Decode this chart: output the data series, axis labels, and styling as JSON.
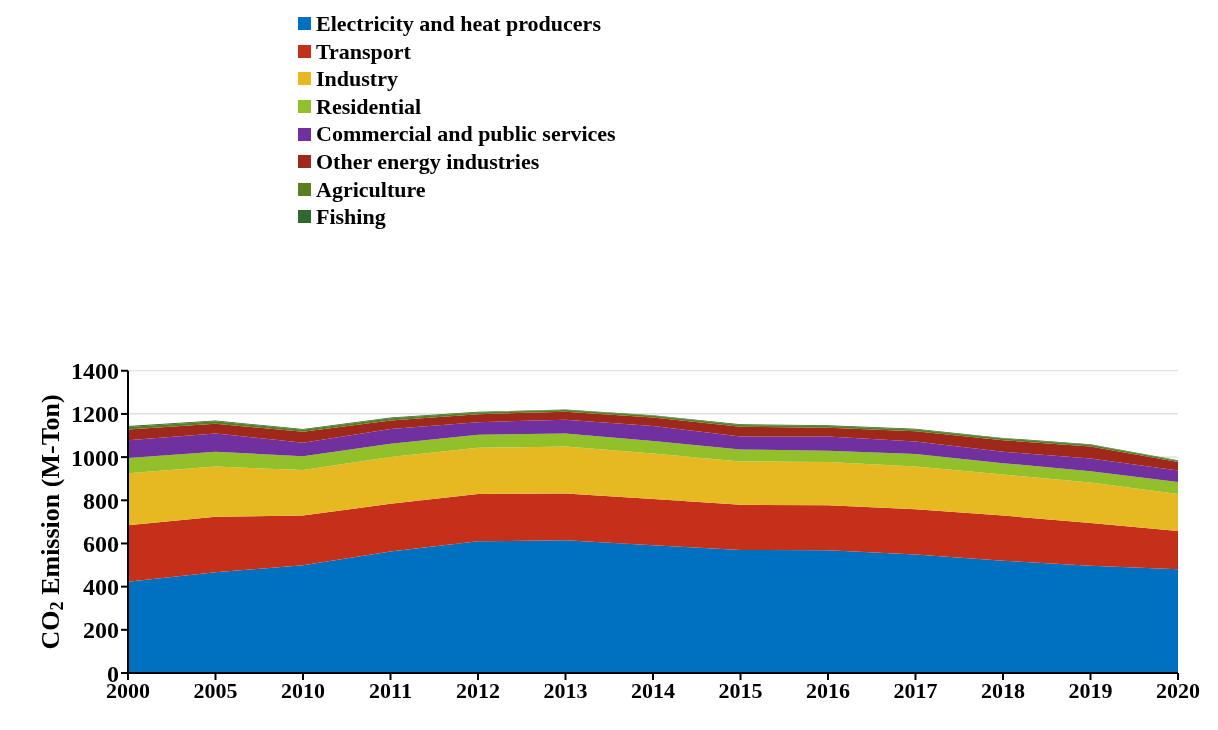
{
  "chart_data": {
    "type": "area",
    "stacked": true,
    "ylabel": "CO$_{2}$ Emission (M-Ton)",
    "categories": [
      "2000",
      "2005",
      "2010",
      "2011",
      "2012",
      "2013",
      "2014",
      "2015",
      "2016",
      "2017",
      "2018",
      "2019",
      "2020"
    ],
    "series": [
      {
        "name": "Electricity and heat producers",
        "color": "#0070c0",
        "values": [
          423,
          467,
          499,
          563,
          610,
          615,
          592,
          570,
          568,
          549,
          520,
          497,
          481
        ]
      },
      {
        "name": "Transport",
        "color": "#c5301a",
        "values": [
          261,
          257,
          230,
          221,
          219,
          217,
          214,
          209,
          209,
          209,
          209,
          198,
          177
        ]
      },
      {
        "name": "Industry",
        "color": "#e6b822",
        "values": [
          241,
          232,
          211,
          217,
          214,
          217,
          211,
          201,
          200,
          198,
          190,
          187,
          171
        ]
      },
      {
        "name": "Residential",
        "color": "#92c02b",
        "values": [
          71,
          69,
          64,
          61,
          61,
          60,
          58,
          55,
          53,
          58,
          53,
          53,
          56
        ]
      },
      {
        "name": "Commercial and public services",
        "color": "#7030a0",
        "values": [
          82,
          84,
          63,
          68,
          58,
          64,
          69,
          61,
          66,
          58,
          53,
          58,
          53
        ]
      },
      {
        "name": "Other energy industries",
        "color": "#a0281a",
        "values": [
          50,
          45,
          50,
          40,
          37,
          37,
          39,
          45,
          40,
          48,
          53,
          56,
          39
        ]
      },
      {
        "name": "Agriculture",
        "color": "#5a7f22",
        "values": [
          12,
          12,
          10,
          10,
          8,
          8,
          8,
          8,
          8,
          8,
          8,
          8,
          6
        ]
      },
      {
        "name": "Fishing",
        "color": "#2e6b2a",
        "values": [
          4,
          4,
          3,
          3,
          3,
          3,
          3,
          3,
          3,
          3,
          3,
          3,
          2
        ]
      }
    ],
    "ylim": [
      0,
      1400
    ],
    "yticks": [
      0,
      200,
      400,
      600,
      800,
      1000,
      1200,
      1400
    ],
    "grid": "y",
    "legend": "top"
  }
}
